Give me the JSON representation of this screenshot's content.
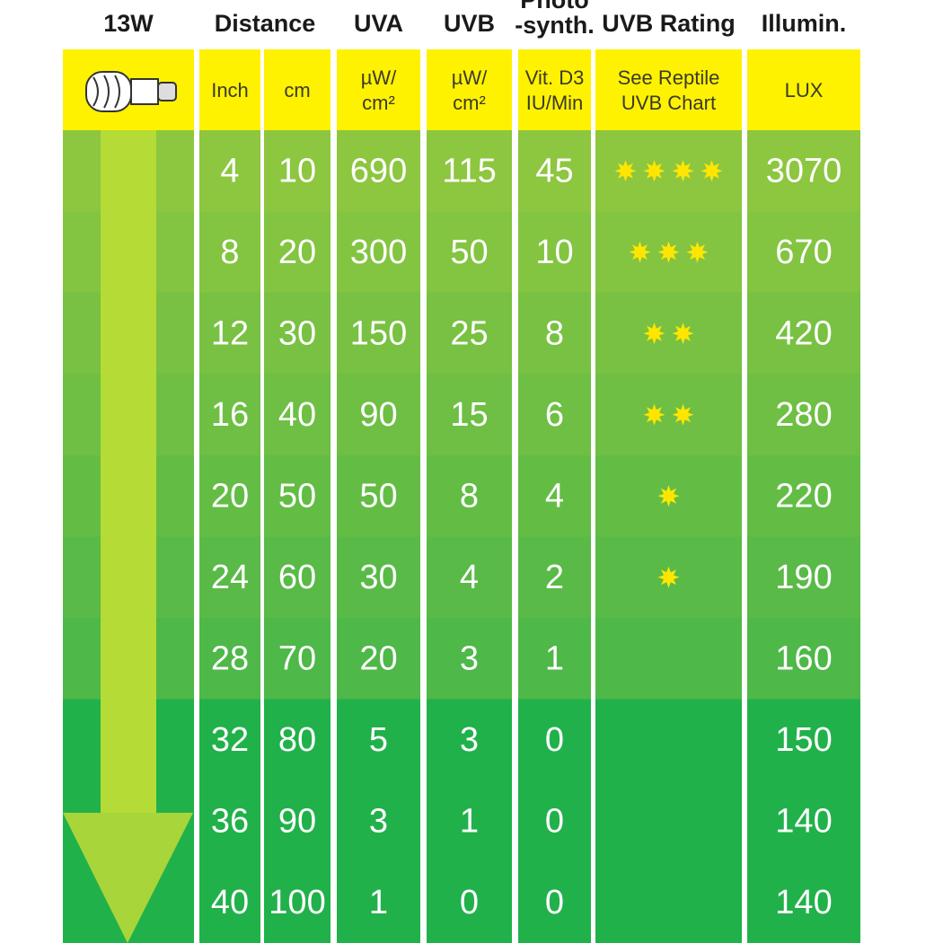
{
  "header": {
    "columns": [
      [
        "13W"
      ],
      [
        "Distance"
      ],
      [
        "UVA"
      ],
      [
        "UVB"
      ],
      [
        "Photo",
        "-synth."
      ],
      [
        "UVB Rating"
      ],
      [
        "Illumin."
      ]
    ]
  },
  "subheader": {
    "inch": [
      "Inch"
    ],
    "cm": [
      "cm"
    ],
    "uva": [
      "µW/",
      "cm²"
    ],
    "uvb": [
      "µW/",
      "cm²"
    ],
    "vitd3": [
      "Vit. D3",
      "IU/Min"
    ],
    "rating": [
      "See Reptile",
      "UVB Chart"
    ],
    "lux": [
      "LUX"
    ]
  },
  "table": {
    "rows": [
      [
        4,
        10,
        690,
        115,
        45,
        4,
        3070
      ],
      [
        8,
        20,
        300,
        50,
        10,
        3,
        670
      ],
      [
        12,
        30,
        150,
        25,
        8,
        2,
        420
      ],
      [
        16,
        40,
        90,
        15,
        6,
        2,
        280
      ],
      [
        20,
        50,
        50,
        8,
        4,
        1,
        220
      ],
      [
        24,
        60,
        30,
        4,
        2,
        1,
        190
      ],
      [
        28,
        70,
        20,
        3,
        1,
        0,
        160
      ],
      [
        32,
        80,
        5,
        3,
        0,
        0,
        150
      ],
      [
        36,
        90,
        3,
        1,
        0,
        0,
        140
      ],
      [
        40,
        100,
        1,
        0,
        0,
        0,
        140
      ]
    ]
  }
}
